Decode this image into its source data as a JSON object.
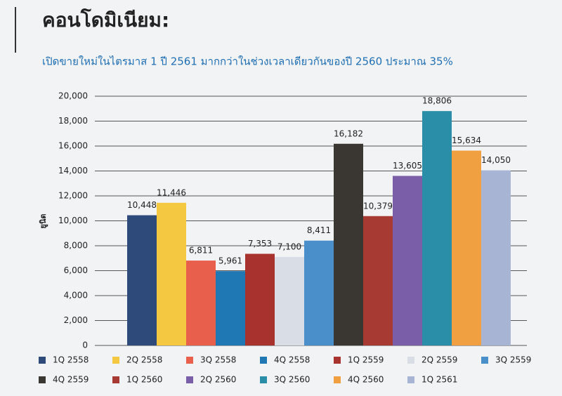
{
  "chart_data": {
    "type": "bar",
    "title": "คอนโดมิเนียม:",
    "subtitle": "เปิดขายใหม่ในไตรมาส 1 ปี 2561 มากกว่าในช่วงเวลาเดียวกันของปี 2560 ประมาณ 35%",
    "y_label": "ยูนิต",
    "categories": [
      "1Q 2558",
      "2Q 2558",
      "3Q 2558",
      "4Q 2558",
      "1Q 2559",
      "2Q 2559",
      "3Q 2559",
      "4Q 2559",
      "1Q 2560",
      "2Q 2560",
      "3Q 2560",
      "4Q 2560",
      "1Q 2561"
    ],
    "values": [
      10448,
      11446,
      6811,
      5961,
      7353,
      7100,
      8411,
      16182,
      10379,
      13605,
      18806,
      15634,
      14050
    ],
    "value_labels": [
      "10,448",
      "11,446",
      "6,811",
      "5,961",
      "7,353",
      "7,100",
      "8,411",
      "16,182",
      "10,379",
      "13,605",
      "18,806",
      "15,634",
      "14,050"
    ],
    "colors": [
      "#2e4a7a",
      "#f5c842",
      "#e8604c",
      "#1f78b4",
      "#a8322d",
      "#d9dde6",
      "#4a8fc9",
      "#3a3632",
      "#a83a34",
      "#7a5fa8",
      "#2a8ea8",
      "#f0a040",
      "#a8b4d4"
    ],
    "ylim": [
      0,
      20000
    ],
    "yticks": [
      0,
      {
        "value": 2000,
        "label": "2,000"
      },
      {
        "value": 4000,
        "label": "4,000"
      },
      {
        "value": 6000,
        "label": "6,000"
      },
      {
        "value": 8000,
        "label": "8,000"
      },
      {
        "value": 10000,
        "label": "10,000"
      },
      {
        "value": 12000,
        "label": "12,000"
      },
      {
        "value": 14000,
        "label": "14,000"
      },
      {
        "value": 16000,
        "label": "16,000"
      },
      {
        "value": 18000,
        "label": "18,000"
      },
      {
        "value": 20000,
        "label": "20,000"
      }
    ],
    "grid": true
  }
}
